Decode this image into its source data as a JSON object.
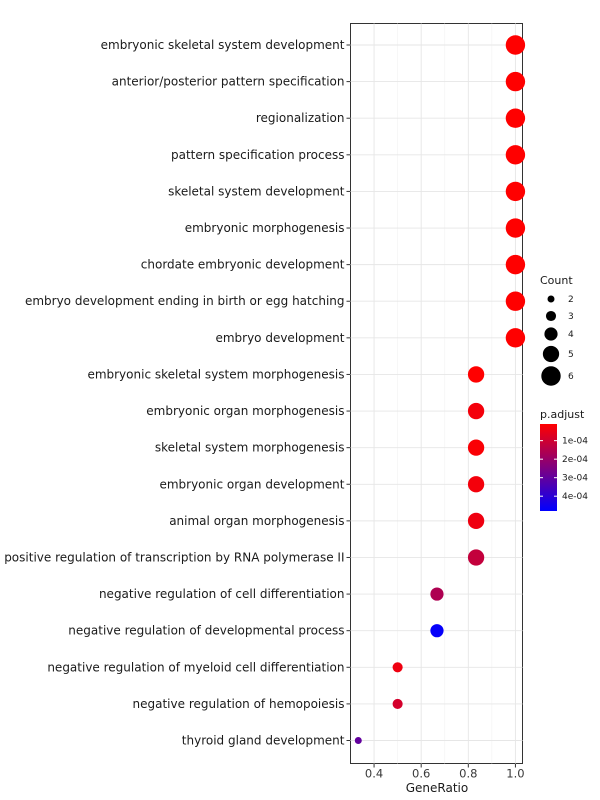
{
  "chart_data": {
    "type": "scatter",
    "xlabel": "GeneRatio",
    "xlim": [
      0.3,
      1.03
    ],
    "x_ticks": [
      0.4,
      0.6,
      0.8,
      1.0
    ],
    "x_tick_labels": [
      "0.4",
      "0.6",
      "0.8",
      "1.0"
    ],
    "grid": true,
    "points": [
      {
        "term": "embryonic skeletal system development",
        "gene_ratio": 1.0,
        "count": 6,
        "p_adjust": 1e-05
      },
      {
        "term": "anterior/posterior pattern specification",
        "gene_ratio": 1.0,
        "count": 6,
        "p_adjust": 1e-05
      },
      {
        "term": "regionalization",
        "gene_ratio": 1.0,
        "count": 6,
        "p_adjust": 1e-05
      },
      {
        "term": "pattern specification process",
        "gene_ratio": 1.0,
        "count": 6,
        "p_adjust": 1e-05
      },
      {
        "term": "skeletal system development",
        "gene_ratio": 1.0,
        "count": 6,
        "p_adjust": 1e-05
      },
      {
        "term": "embryonic morphogenesis",
        "gene_ratio": 1.0,
        "count": 6,
        "p_adjust": 1e-05
      },
      {
        "term": "chordate embryonic development",
        "gene_ratio": 1.0,
        "count": 6,
        "p_adjust": 1e-05
      },
      {
        "term": "embryo development ending in birth or egg hatching",
        "gene_ratio": 1.0,
        "count": 6,
        "p_adjust": 1e-05
      },
      {
        "term": "embryo development",
        "gene_ratio": 1.0,
        "count": 6,
        "p_adjust": 1e-05
      },
      {
        "term": "embryonic skeletal system morphogenesis",
        "gene_ratio": 0.833,
        "count": 5,
        "p_adjust": 1e-05
      },
      {
        "term": "embryonic organ morphogenesis",
        "gene_ratio": 0.833,
        "count": 5,
        "p_adjust": 3e-05
      },
      {
        "term": "skeletal system morphogenesis",
        "gene_ratio": 0.833,
        "count": 5,
        "p_adjust": 2e-05
      },
      {
        "term": "embryonic organ development",
        "gene_ratio": 0.833,
        "count": 5,
        "p_adjust": 3e-05
      },
      {
        "term": "animal organ morphogenesis",
        "gene_ratio": 0.833,
        "count": 5,
        "p_adjust": 4e-05
      },
      {
        "term": "positive regulation of transcription by RNA polymerase II",
        "gene_ratio": 0.833,
        "count": 5,
        "p_adjust": 0.00012
      },
      {
        "term": "negative regulation of cell differentiation",
        "gene_ratio": 0.667,
        "count": 4,
        "p_adjust": 0.00016
      },
      {
        "term": "negative regulation of developmental process",
        "gene_ratio": 0.667,
        "count": 4,
        "p_adjust": 0.00047
      },
      {
        "term": "negative regulation of myeloid cell differentiation",
        "gene_ratio": 0.5,
        "count": 3,
        "p_adjust": 4e-05
      },
      {
        "term": "negative regulation of hemopoiesis",
        "gene_ratio": 0.5,
        "count": 3,
        "p_adjust": 9e-05
      },
      {
        "term": "thyroid gland development",
        "gene_ratio": 0.333,
        "count": 2,
        "p_adjust": 0.0003
      }
    ],
    "size_legend": {
      "title": "Count",
      "values": [
        2,
        3,
        4,
        5,
        6
      ],
      "labels": [
        "2",
        "3",
        "4",
        "5",
        "6"
      ]
    },
    "color_legend": {
      "title": "p.adjust",
      "low_color": "#ff0000",
      "high_color": "#0000ff",
      "range": [
        1e-05,
        0.00048
      ],
      "ticks": [
        0.0001,
        0.0002,
        0.0003,
        0.0004
      ],
      "tick_labels": [
        "1e-04",
        "2e-04",
        "3e-04",
        "4e-04"
      ]
    }
  }
}
